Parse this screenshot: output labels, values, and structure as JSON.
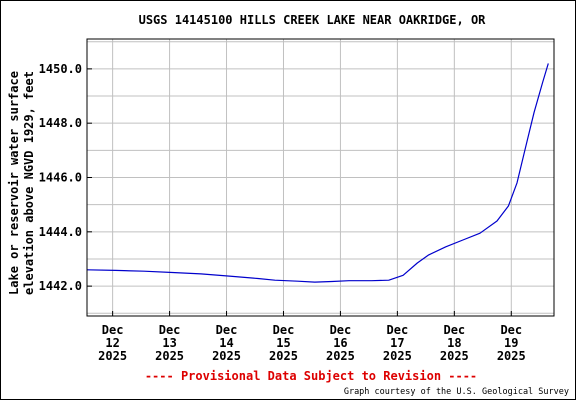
{
  "chart_data": {
    "type": "line",
    "title": "USGS 14145100 HILLS CREEK LAKE NEAR OAKRIDGE, OR",
    "ylabel_lines": [
      "Lake or reservoir water surface",
      "elevation above NGVD 1929, feet"
    ],
    "xlabel": "",
    "ylim": [
      1440.9,
      1451.1
    ],
    "xlim": [
      0,
      8.2
    ],
    "grid": true,
    "y_ticks": [
      {
        "value": 1442.0,
        "label": "1442.0"
      },
      {
        "value": 1444.0,
        "label": "1444.0"
      },
      {
        "value": 1446.0,
        "label": "1446.0"
      },
      {
        "value": 1448.0,
        "label": "1448.0"
      },
      {
        "value": 1450.0,
        "label": "1450.0"
      }
    ],
    "x_ticks": [
      {
        "value": 0.45,
        "month": "Dec",
        "day": "12",
        "year": "2025"
      },
      {
        "value": 1.45,
        "month": "Dec",
        "day": "13",
        "year": "2025"
      },
      {
        "value": 2.45,
        "month": "Dec",
        "day": "14",
        "year": "2025"
      },
      {
        "value": 3.45,
        "month": "Dec",
        "day": "15",
        "year": "2025"
      },
      {
        "value": 4.45,
        "month": "Dec",
        "day": "16",
        "year": "2025"
      },
      {
        "value": 5.45,
        "month": "Dec",
        "day": "17",
        "year": "2025"
      },
      {
        "value": 6.45,
        "month": "Dec",
        "day": "18",
        "year": "2025"
      },
      {
        "value": 7.45,
        "month": "Dec",
        "day": "19",
        "year": "2025"
      }
    ],
    "series": [
      {
        "color": "#0000cc",
        "x": [
          0.0,
          0.5,
          1.0,
          1.5,
          2.0,
          2.5,
          3.0,
          3.3,
          3.7,
          4.0,
          4.3,
          4.6,
          5.0,
          5.3,
          5.55,
          5.8,
          6.0,
          6.3,
          6.6,
          6.9,
          7.2,
          7.4,
          7.55,
          7.7,
          7.85,
          8.0,
          8.1
        ],
        "y": [
          1442.6,
          1442.58,
          1442.55,
          1442.5,
          1442.45,
          1442.37,
          1442.28,
          1442.22,
          1442.18,
          1442.15,
          1442.17,
          1442.2,
          1442.2,
          1442.22,
          1442.4,
          1442.85,
          1443.15,
          1443.45,
          1443.7,
          1443.95,
          1444.4,
          1444.95,
          1445.8,
          1447.1,
          1448.4,
          1449.5,
          1450.2
        ]
      }
    ]
  },
  "footer": {
    "provisional": "---- Provisional Data Subject to Revision ----",
    "courtesy": "Graph courtesy of the U.S. Geological Survey"
  },
  "colors": {
    "line": "#0000cc",
    "provisional": "#dd0000",
    "grid": "#c0c0c0"
  }
}
